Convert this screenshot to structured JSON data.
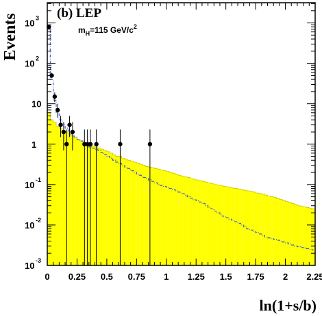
{
  "chart_data": {
    "type": "histogram",
    "title": "(b) LEP",
    "subtitle_main": "m",
    "subtitle_sub": "H",
    "subtitle_rest": "=115 GeV/c",
    "subtitle_sup": "2",
    "xlabel": "ln(1+s/b)",
    "ylabel": "Events",
    "xlim": [
      0,
      2.25
    ],
    "ylim_log10": [
      -3,
      3.5
    ],
    "log_y": true,
    "x_ticks": [
      "0",
      "0.25",
      "0.5",
      "0.75",
      "1",
      "1.25",
      "1.5",
      "1.75",
      "2",
      "2.25"
    ],
    "y_ticks": [
      {
        "base": "10",
        "exp": "-3"
      },
      {
        "base": "10",
        "exp": "-2"
      },
      {
        "base": "10",
        "exp": "-1"
      },
      {
        "base": "1",
        "exp": ""
      },
      {
        "base": "10",
        "exp": ""
      },
      {
        "base": "10",
        "exp": "2"
      },
      {
        "base": "10",
        "exp": "3"
      }
    ],
    "bin_width": 0.025,
    "background_bins": [
      6,
      4,
      3.5,
      2.8,
      2.5,
      2.2,
      2.0,
      1.8,
      1.6,
      1.5,
      1.3,
      1.2,
      1.1,
      1.0,
      0.95,
      0.9,
      0.85,
      0.8,
      0.75,
      0.7,
      0.65,
      0.6,
      0.55,
      0.5,
      0.5,
      0.45,
      0.42,
      0.4,
      0.38,
      0.36,
      0.34,
      0.32,
      0.3,
      0.28,
      0.27,
      0.26,
      0.25,
      0.24,
      0.23,
      0.22,
      0.21,
      0.2,
      0.19,
      0.18,
      0.17,
      0.16,
      0.155,
      0.15,
      0.14,
      0.135,
      0.13,
      0.125,
      0.12,
      0.115,
      0.11,
      0.105,
      0.1,
      0.098,
      0.095,
      0.09,
      0.088,
      0.085,
      0.082,
      0.08,
      0.078,
      0.075,
      0.072,
      0.07,
      0.068,
      0.065,
      0.062,
      0.06,
      0.058,
      0.055,
      0.052,
      0.05,
      0.048,
      0.045,
      0.043,
      0.04,
      0.038,
      0.036,
      0.034,
      0.032,
      0.03,
      0.029,
      0.028,
      0.027,
      0.026,
      0.025
    ],
    "signal_plus_background_bins": [
      800,
      40,
      12,
      6,
      4,
      3,
      2.5,
      2.0,
      1.7,
      1.5,
      1.3,
      1.2,
      1.05,
      0.95,
      0.85,
      0.8,
      0.75,
      0.7,
      0.62,
      0.55,
      0.5,
      0.45,
      0.4,
      0.36,
      0.33,
      0.3,
      0.27,
      0.25,
      0.22,
      0.2,
      0.18,
      0.17,
      0.15,
      0.14,
      0.13,
      0.12,
      0.11,
      0.1,
      0.095,
      0.09,
      0.085,
      0.08,
      0.075,
      0.07,
      0.065,
      0.06,
      0.055,
      0.05,
      0.046,
      0.042,
      0.04,
      0.037,
      0.034,
      0.03,
      0.027,
      0.025,
      0.022,
      0.02,
      0.018,
      0.016,
      0.015,
      0.014,
      0.013,
      0.012,
      0.011,
      0.01,
      0.009,
      0.008,
      0.0075,
      0.007,
      0.0065,
      0.006,
      0.0055,
      0.005,
      0.0048,
      0.0046,
      0.0044,
      0.0042,
      0.004,
      0.0038,
      0.0036,
      0.0034,
      0.0032,
      0.003,
      0.0029,
      0.0028,
      0.0027,
      0.0026,
      0.0025,
      0.0024
    ],
    "data_points": [
      {
        "x": 0.0125,
        "y": 800,
        "err_low": 770,
        "err_high": 830
      },
      {
        "x": 0.0375,
        "y": 50,
        "err_low": 43,
        "err_high": 57
      },
      {
        "x": 0.0625,
        "y": 15,
        "err_low": 11,
        "err_high": 19
      },
      {
        "x": 0.0875,
        "y": 7,
        "err_low": 4.5,
        "err_high": 10
      },
      {
        "x": 0.1125,
        "y": 3,
        "err_low": 1.5,
        "err_high": 5
      },
      {
        "x": 0.1375,
        "y": 2,
        "err_low": 0.7,
        "err_high": 3.5
      },
      {
        "x": 0.1625,
        "y": 1,
        "err_low": 0.0001,
        "err_high": 2.3
      },
      {
        "x": 0.1875,
        "y": 3,
        "err_low": 1.5,
        "err_high": 5
      },
      {
        "x": 0.2125,
        "y": 2,
        "err_low": 0.7,
        "err_high": 3.5
      },
      {
        "x": 0.3125,
        "y": 1,
        "err_low": 0.0001,
        "err_high": 2.3
      },
      {
        "x": 0.3375,
        "y": 1,
        "err_low": 0.0001,
        "err_high": 2.3
      },
      {
        "x": 0.3625,
        "y": 1,
        "err_low": 0.0001,
        "err_high": 2.3
      },
      {
        "x": 0.4125,
        "y": 1,
        "err_low": 0.0001,
        "err_high": 2.3
      },
      {
        "x": 0.6125,
        "y": 1,
        "err_low": 0.0001,
        "err_high": 2.3
      },
      {
        "x": 0.8625,
        "y": 1,
        "err_low": 0.0001,
        "err_high": 2.3
      }
    ]
  },
  "colors": {
    "background_fill": "#ffff00",
    "background_edge": "#c8c800",
    "signal_line": "#3a5ad0",
    "points": "#000000"
  }
}
